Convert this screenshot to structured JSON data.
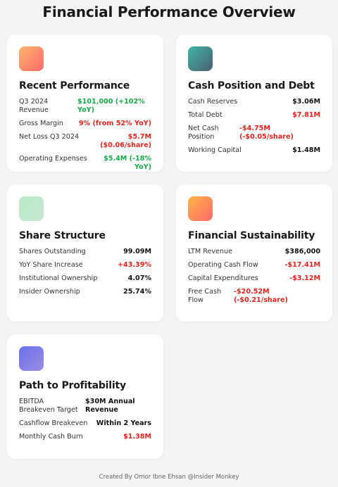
{
  "title": "Financial Performance Overview",
  "cards": [
    {
      "title": "Recent Performance",
      "gradient": [
        "#ffb36b",
        "#ff6b6b"
      ],
      "rows": [
        {
          "label": "Q3 2024 Revenue",
          "value": "$101,000 (+102% YoY)",
          "tone": "positive"
        },
        {
          "label": "Gross Margin",
          "value": "9% (from 52% YoY)",
          "tone": "negative"
        },
        {
          "label": "Net Loss Q3 2024",
          "value": "$5.7M ($0.06/share)",
          "tone": "negative"
        },
        {
          "label": "Operating Expenses",
          "value": "$5.4M (-18% YoY)",
          "tone": "positive"
        }
      ]
    },
    {
      "title": "Cash Position and Debt",
      "gradient": [
        "#3fb7a7",
        "#4a5d6e"
      ],
      "rows": [
        {
          "label": "Cash Reserves",
          "value": "$3.06M",
          "tone": "neutral"
        },
        {
          "label": "Total Debt",
          "value": "$7.81M",
          "tone": "negative"
        },
        {
          "label": "Net Cash Position",
          "value": "-$4.75M (-$0.05/share)",
          "tone": "negative"
        },
        {
          "label": "Working Capital",
          "value": "$1.48M",
          "tone": "neutral"
        }
      ]
    },
    {
      "title": "Share Structure",
      "gradient": [
        "#b7ecc5",
        "#c8e6d2"
      ],
      "rows": [
        {
          "label": "Shares Outstanding",
          "value": "99.09M",
          "tone": "neutral"
        },
        {
          "label": "YoY Share Increase",
          "value": "+43.39%",
          "tone": "negative"
        },
        {
          "label": "Institutional Ownership",
          "value": "4.07%",
          "tone": "neutral"
        },
        {
          "label": "Insider Ownership",
          "value": "25.74%",
          "tone": "neutral"
        }
      ]
    },
    {
      "title": "Financial Sustainability",
      "gradient": [
        "#ffb347",
        "#ff6b6b"
      ],
      "rows": [
        {
          "label": "LTM Revenue",
          "value": "$386,000",
          "tone": "neutral"
        },
        {
          "label": "Operating Cash Flow",
          "value": "-$17.41M",
          "tone": "negative"
        },
        {
          "label": "Capital Expenditures",
          "value": "-$3.12M",
          "tone": "negative"
        },
        {
          "label": "Free Cash Flow",
          "value": "-$20.52M (-$0.21/share)",
          "tone": "negative"
        }
      ]
    },
    {
      "title": "Path to Profitability",
      "gradient": [
        "#6a6ff0",
        "#9b8ee0"
      ],
      "rows": [
        {
          "label": "EBITDA Breakeven Target",
          "value": "$30M Annual Revenue",
          "tone": "neutral"
        },
        {
          "label": "Cashflow Breakeven",
          "value": "Within 2 Years",
          "tone": "neutral"
        },
        {
          "label": "Monthly Cash Burn",
          "value": "$1.38M",
          "tone": "negative"
        }
      ]
    }
  ],
  "footer": "Created By Omor Ibne Ehsan @Insider Monkey"
}
